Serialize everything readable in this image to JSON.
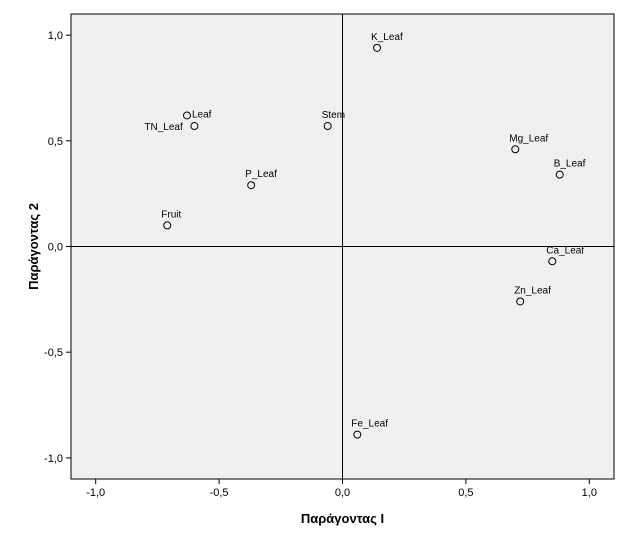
{
  "chart_data": {
    "type": "scatter",
    "title": "",
    "xlabel": "Παράγοντας Ι",
    "ylabel": "Παράγοντας 2",
    "xlim": [
      -1.1,
      1.1
    ],
    "ylim": [
      -1.1,
      1.1
    ],
    "xticks": [
      -1.0,
      -0.5,
      0.0,
      0.5,
      1.0
    ],
    "yticks": [
      -1.0,
      -0.5,
      0.0,
      0.5,
      1.0
    ],
    "xtick_labels": [
      "-1,0",
      "-0,5",
      "0,0",
      "0,5",
      "1,0"
    ],
    "ytick_labels": [
      "-1,0",
      "-0,5",
      "0,0",
      "0,5",
      "1,0"
    ],
    "reference_lines": {
      "x": 0,
      "y": 0
    },
    "grid": false,
    "plot_background": "#f0f0f0",
    "marker": "open-circle",
    "points": [
      {
        "label": "K_Leaf",
        "x": 0.14,
        "y": 0.94
      },
      {
        "label": "Leaf",
        "x": -0.63,
        "y": 0.62
      },
      {
        "label": "TN_Leaf",
        "x": -0.6,
        "y": 0.57
      },
      {
        "label": "Stem",
        "x": -0.06,
        "y": 0.57
      },
      {
        "label": "Mg_Leaf",
        "x": 0.7,
        "y": 0.46
      },
      {
        "label": "B_Leaf",
        "x": 0.88,
        "y": 0.34
      },
      {
        "label": "P_Leaf",
        "x": -0.37,
        "y": 0.29
      },
      {
        "label": "Fruit",
        "x": -0.71,
        "y": 0.1
      },
      {
        "label": "Ca_Leaf",
        "x": 0.85,
        "y": -0.07
      },
      {
        "label": "Zn_Leaf",
        "x": 0.72,
        "y": -0.26
      },
      {
        "label": "Fe_Leaf",
        "x": 0.06,
        "y": -0.89
      }
    ]
  }
}
